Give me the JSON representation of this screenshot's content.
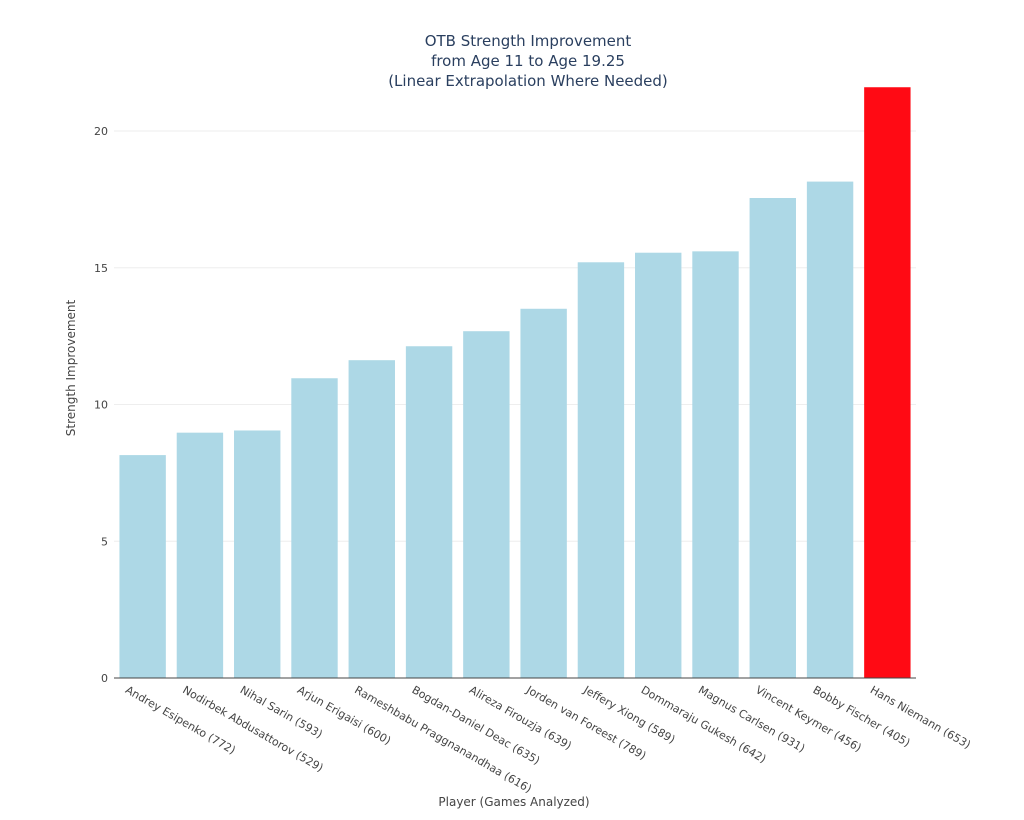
{
  "chart_data": {
    "type": "bar",
    "title_lines": [
      "OTB Strength Improvement",
      "from Age 11 to Age 19.25",
      "(Linear Extrapolation Where Needed)"
    ],
    "xlabel": "Player (Games Analyzed)",
    "ylabel": "Strength Improvement",
    "ylim": [
      0,
      21.6
    ],
    "yticks": [
      0,
      5,
      10,
      15,
      20
    ],
    "grid": true,
    "categories": [
      "Andrey Esipenko (772)",
      "Nodirbek Abdusattorov (529)",
      "Nihal Sarin (593)",
      "Arjun Erigaisi (600)",
      "Rameshbabu Praggnanandhaa (616)",
      "Bogdan-Daniel Deac (635)",
      "Alireza Firouzja (639)",
      "Jorden van Foreest (789)",
      "Jeffery Xiong (589)",
      "Dommaraju Gukesh (642)",
      "Magnus Carlsen (931)",
      "Vincent Keymer (456)",
      "Bobby Fischer (405)",
      "Hans Niemann (653)"
    ],
    "values": [
      8.15,
      8.97,
      9.05,
      10.96,
      11.62,
      12.13,
      12.68,
      13.5,
      15.2,
      15.55,
      15.6,
      17.55,
      18.15,
      21.6
    ],
    "colors": [
      "#add8e6",
      "#add8e6",
      "#add8e6",
      "#add8e6",
      "#add8e6",
      "#add8e6",
      "#add8e6",
      "#add8e6",
      "#add8e6",
      "#add8e6",
      "#add8e6",
      "#add8e6",
      "#add8e6",
      "#ff0a14"
    ]
  }
}
